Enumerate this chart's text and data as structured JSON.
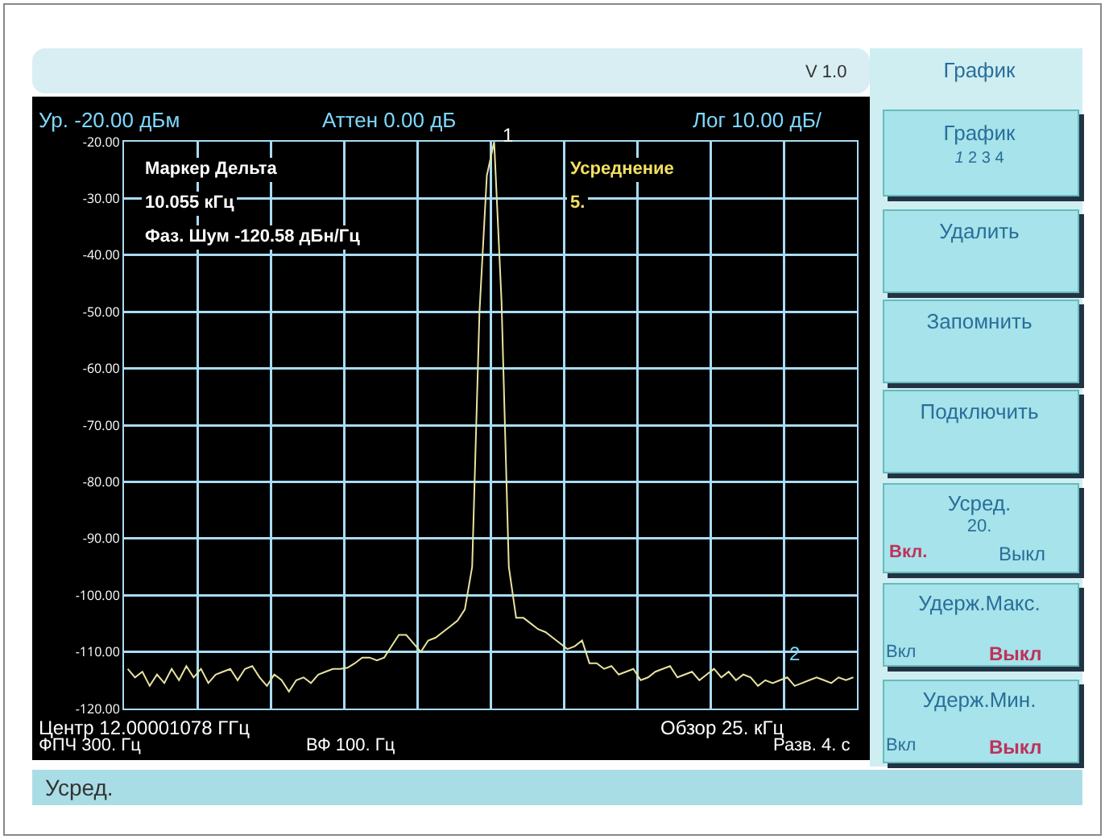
{
  "chart_data": {
    "type": "line",
    "categories": [
      null,
      null,
      null,
      null,
      null,
      null,
      null,
      null,
      null,
      null,
      null,
      null,
      null,
      null,
      null,
      null,
      null,
      null,
      null,
      null,
      null,
      null,
      null,
      null,
      null,
      null,
      null,
      null,
      null,
      null,
      null,
      null,
      null,
      null,
      null,
      null,
      null,
      null,
      null,
      null,
      null,
      null,
      null,
      null,
      null,
      null,
      null,
      null,
      null,
      null,
      null,
      null,
      null,
      null,
      null,
      null,
      null,
      null,
      null,
      null,
      null,
      null,
      null,
      null,
      null,
      null,
      null,
      null,
      null,
      null,
      null,
      null,
      null,
      null,
      null,
      null,
      null,
      null,
      null,
      null,
      null,
      null,
      null,
      null,
      null,
      null,
      null,
      null,
      null,
      null,
      null,
      null,
      null,
      null,
      null,
      null,
      null,
      null,
      null,
      null
    ],
    "series": [
      {
        "color": "#e8e2a0",
        "values": [
          -113,
          -114.5,
          -113.5,
          -116,
          -114,
          -115.5,
          -113,
          -115,
          -112.5,
          -114.5,
          -113,
          -115.5,
          -114,
          -113.5,
          -113,
          -115,
          -113,
          -112.5,
          -114.5,
          -116,
          -114,
          -115,
          -117,
          -115,
          -114.5,
          -115.5,
          -114,
          -113.5,
          -113,
          -113,
          -112.8,
          -112,
          -111,
          -111,
          -111.5,
          -111,
          -109,
          -107,
          -107,
          -108.5,
          -110,
          -108,
          -107.5,
          -106.5,
          -105.5,
          -104.5,
          -102.5,
          -95,
          -50,
          -26,
          -20,
          -48,
          -95,
          -104,
          -104,
          -105,
          -106,
          -106.5,
          -107.5,
          -108.5,
          -109.5,
          -109,
          -108,
          -112,
          -112,
          -113,
          -112.5,
          -114,
          -113.5,
          -113,
          -115,
          -114.5,
          -113.5,
          -113,
          -112.5,
          -114.5,
          -114,
          -113.5,
          -115,
          -114,
          -113,
          -114.5,
          -113.5,
          -115,
          -114,
          -114.5,
          -116,
          -115,
          -115.5,
          -115,
          -114.5,
          -116,
          -115.5,
          -115,
          -114.5,
          -115,
          -115.5,
          -114.5,
          -115,
          -114.5
        ]
      }
    ],
    "ylim": [
      -120,
      -20
    ],
    "yticks": [
      {
        "value": -20,
        "label": "-20.00"
      },
      {
        "value": -30,
        "label": "-30.00"
      },
      {
        "value": -40,
        "label": "-40.00"
      },
      {
        "value": -50,
        "label": "-50.00"
      },
      {
        "value": -60,
        "label": "-60.00"
      },
      {
        "value": -70,
        "label": "-70.00"
      },
      {
        "value": -80,
        "label": "-80.00"
      },
      {
        "value": -90,
        "label": "-90.00"
      },
      {
        "value": -100,
        "label": "-100.00"
      },
      {
        "value": -110,
        "label": "-110.00"
      },
      {
        "value": -120,
        "label": "-120.00"
      }
    ],
    "grid": true,
    "marker": "none",
    "line_style": "solid",
    "annotations": [
      "Ур. -20.00 дБм",
      "Аттен 0.00 дБ",
      "Лог 10.00 дБ/",
      "Маркер Дельта",
      "10.055 кГц",
      "Фаз. Шум -120.58 дБн/Гц",
      "Усреднение",
      "5.",
      "Центр 12.00001078 ГГц",
      "ФПЧ 300. Гц",
      "ВФ 100. Гц",
      "Обзор 25. кГц",
      "Разв. 4. с",
      "V 1.0",
      "График",
      "График",
      "*1* 2 3 4",
      "Удалить",
      "Запомнить",
      "Подключить",
      "Усред.",
      "20.",
      "Вкл.",
      "Выкл",
      "Удерж.Макс.",
      "Вкл",
      "Выкл",
      "Удерж.Мин.",
      "Вкл",
      "Выкл",
      "Усред.",
      "1",
      "2"
    ]
  }
}
